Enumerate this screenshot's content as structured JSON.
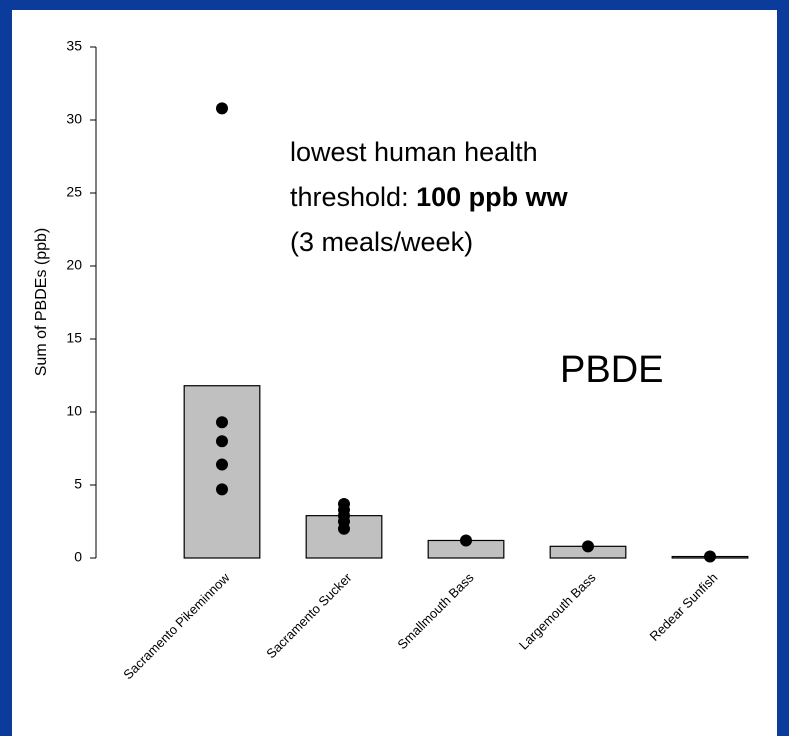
{
  "chart_data": {
    "type": "bar",
    "ylabel": "Sum of PBDEs (ppb)",
    "categories": [
      "Sacramento Pikeminnow",
      "Sacramento Sucker",
      "Smallmouth Bass",
      "Largemouth Bass",
      "Redear Sunfish"
    ],
    "values": [
      11.8,
      2.9,
      1.2,
      0.8,
      0.1
    ],
    "points": [
      [
        30.8,
        9.3,
        8.0,
        6.4,
        4.7
      ],
      [
        3.7,
        3.3,
        2.9,
        2.5,
        2.0
      ],
      [
        1.2
      ],
      [
        0.8
      ],
      [
        0.1
      ]
    ],
    "color": "#c0c0c0",
    "point_color": "#000000",
    "ylim": [
      0,
      35
    ],
    "yticks": [
      0,
      5,
      10,
      15,
      20,
      25,
      30,
      35
    ],
    "annotation": [
      "lowest human health",
      "threshold: ",
      "100 ppb ww",
      "(3 meals/week)"
    ],
    "label": "PBDE"
  }
}
